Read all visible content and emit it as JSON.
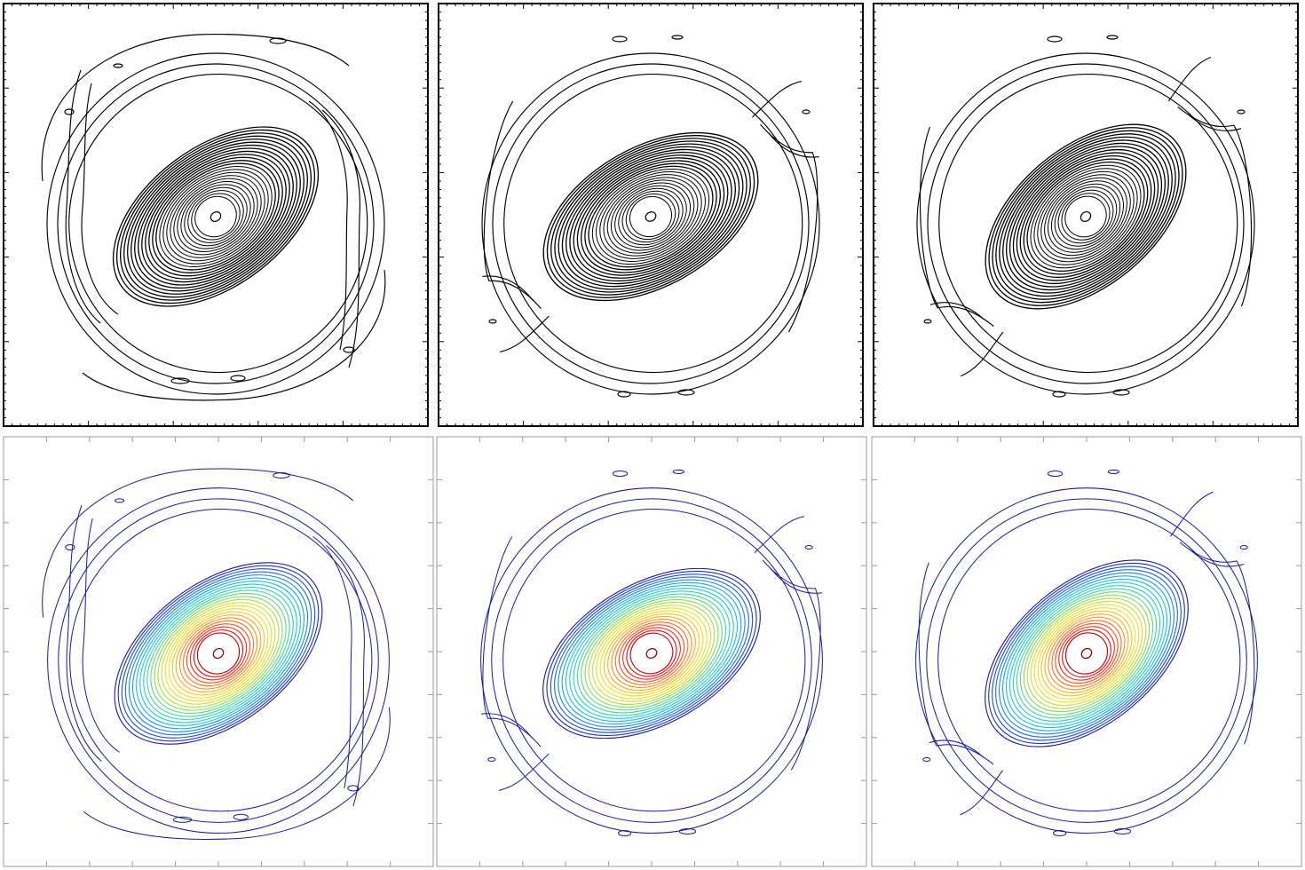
{
  "figure": {
    "grid": {
      "rows": 2,
      "cols": 3
    },
    "panels": [
      {
        "id": "top-left",
        "style": "monochrome",
        "frame": "heavy",
        "tilt_deg": 37,
        "arm_variant": "broken-spirals"
      },
      {
        "id": "top-middle",
        "style": "monochrome",
        "frame": "heavy",
        "tilt_deg": 30,
        "arm_variant": "smooth"
      },
      {
        "id": "top-right",
        "style": "monochrome",
        "frame": "heavy",
        "tilt_deg": 40,
        "arm_variant": "smooth"
      },
      {
        "id": "bottom-left",
        "style": "colored",
        "frame": "light",
        "tilt_deg": 37,
        "arm_variant": "broken-spirals"
      },
      {
        "id": "bottom-middle",
        "style": "colored",
        "frame": "light",
        "tilt_deg": 30,
        "arm_variant": "smooth"
      },
      {
        "id": "bottom-right",
        "style": "colored",
        "frame": "light",
        "tilt_deg": 40,
        "arm_variant": "smooth"
      }
    ],
    "colors": {
      "monochrome_line": "#000000",
      "outer_contour": "#1a1aa0",
      "colormap": [
        "#1a1aa0",
        "#1f4fd8",
        "#1c8fe6",
        "#1cc8e6",
        "#2fd6b0",
        "#6fdc6f",
        "#bde23a",
        "#ffe21f",
        "#ffb41f",
        "#ff7a1f",
        "#ff2a1f",
        "#c80000"
      ],
      "frame_heavy": "#000000",
      "frame_light": "#9a9a9a"
    }
  }
}
